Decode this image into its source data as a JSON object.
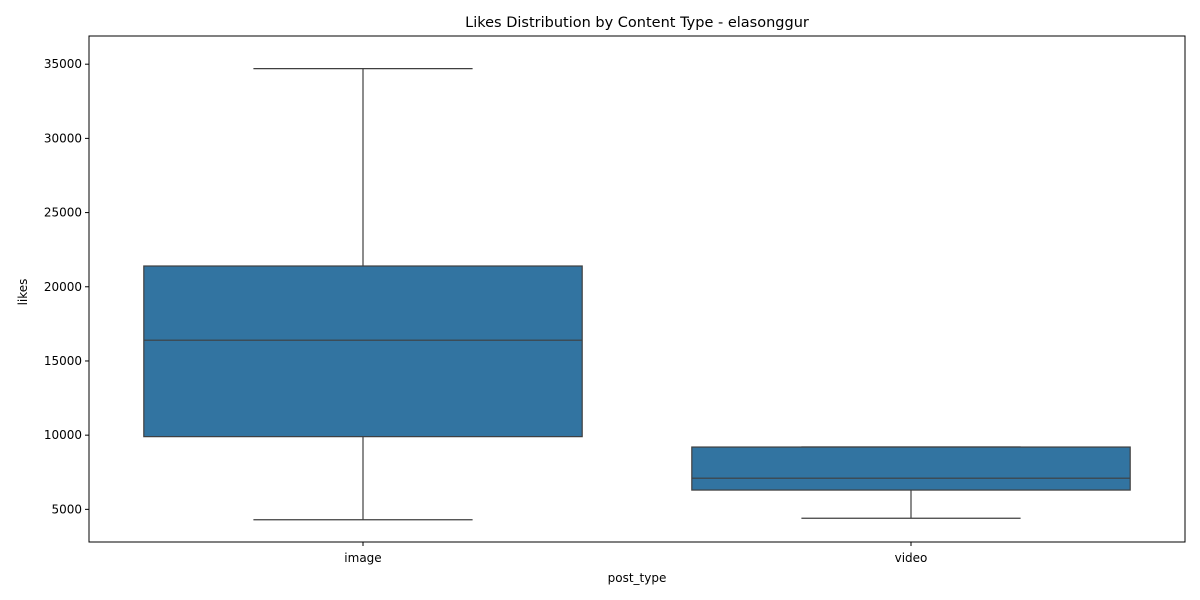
{
  "chart_data": {
    "type": "box",
    "title": "Likes Distribution by Content Type - elasonggur",
    "xlabel": "post_type",
    "ylabel": "likes",
    "categories": [
      "image",
      "video"
    ],
    "boxes": [
      {
        "category": "image",
        "whisker_low": 4300,
        "q1": 9900,
        "median": 16400,
        "q3": 21400,
        "whisker_high": 34700
      },
      {
        "category": "video",
        "whisker_low": 4400,
        "q1": 6300,
        "median": 7100,
        "q3": 9200,
        "whisker_high": 9200
      }
    ],
    "yticks": [
      5000,
      10000,
      15000,
      20000,
      25000,
      30000,
      35000
    ],
    "ylim": [
      2800,
      36900
    ],
    "grid": false,
    "legend": "none",
    "box_color": "#3274a1",
    "line_color": "#3f3f3f"
  }
}
